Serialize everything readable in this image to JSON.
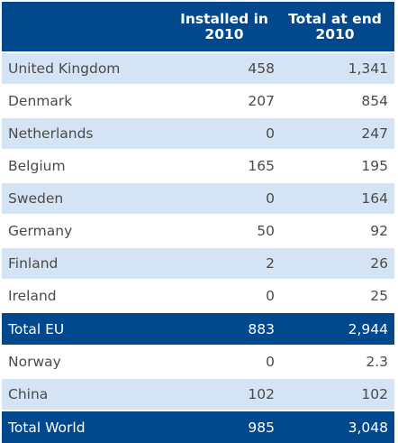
{
  "columns": {
    "installed": "Installed in 2010",
    "total": "Total at end 2010"
  },
  "rows": [
    {
      "name": "United Kingdom",
      "installed": "458",
      "total": "1,341",
      "style": "shade"
    },
    {
      "name": "Denmark",
      "installed": "207",
      "total": "854",
      "style": "plain"
    },
    {
      "name": "Netherlands",
      "installed": "0",
      "total": "247",
      "style": "shade"
    },
    {
      "name": "Belgium",
      "installed": "165",
      "total": "195",
      "style": "plain"
    },
    {
      "name": "Sweden",
      "installed": "0",
      "total": "164",
      "style": "shade"
    },
    {
      "name": "Germany",
      "installed": "50",
      "total": "92",
      "style": "plain"
    },
    {
      "name": "Finland",
      "installed": "2",
      "total": "26",
      "style": "shade"
    },
    {
      "name": "Ireland",
      "installed": "0",
      "total": "25",
      "style": "plain"
    },
    {
      "name": "Total EU",
      "installed": "883",
      "total": "2,944",
      "style": "total"
    },
    {
      "name": "Norway",
      "installed": "0",
      "total": "2.3",
      "style": "plain"
    },
    {
      "name": "China",
      "installed": "102",
      "total": "102",
      "style": "shade"
    },
    {
      "name": "Total World",
      "installed": "985",
      "total": "3,048",
      "style": "total"
    }
  ],
  "colors": {
    "header": "#02488d",
    "shade": "#d4e4f4",
    "text": "#4a4a4a"
  }
}
